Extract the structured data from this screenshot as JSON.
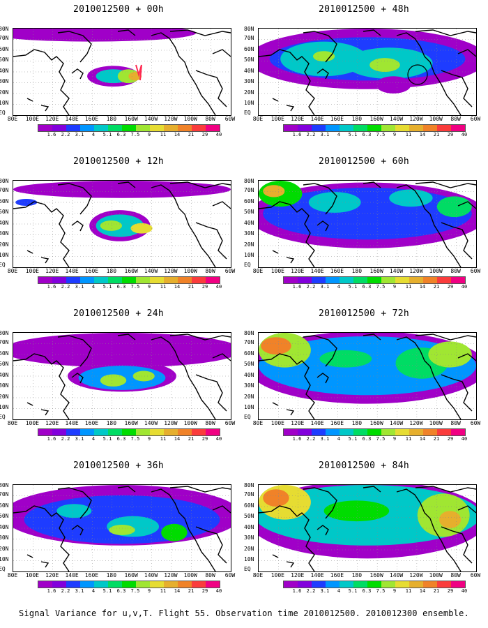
{
  "panels": [
    {
      "title": "2010012500 + 00h"
    },
    {
      "title": "2010012500 + 48h"
    },
    {
      "title": "2010012500 + 12h"
    },
    {
      "title": "2010012500 + 60h"
    },
    {
      "title": "2010012500 + 24h"
    },
    {
      "title": "2010012500 + 72h"
    },
    {
      "title": "2010012500 + 36h"
    },
    {
      "title": "2010012500 + 84h"
    }
  ],
  "lat_labels": [
    "80N",
    "70N",
    "60N",
    "50N",
    "40N",
    "30N",
    "20N",
    "10N",
    "EQ"
  ],
  "lon_labels": [
    "80E",
    "100E",
    "120E",
    "140E",
    "160E",
    "180",
    "160W",
    "140W",
    "120W",
    "100W",
    "80W",
    "60W"
  ],
  "colorbar": {
    "values": [
      "1.6",
      "2.2",
      "3.1",
      "4",
      "5.1",
      "6.3",
      "7.5",
      "9",
      "11",
      "14",
      "21",
      "29",
      "40"
    ],
    "colors": [
      "#a000c8",
      "#8200dc",
      "#1e3cff",
      "#0096ff",
      "#00c8c8",
      "#00dc64",
      "#00dc00",
      "#a0e632",
      "#e6dc32",
      "#e6af2d",
      "#f08228",
      "#fa3c3c",
      "#f00082"
    ]
  },
  "caption": "Signal Variance for u,v,T. Flight 55. Observation time 2010012500. 2010012300 ensemble."
}
